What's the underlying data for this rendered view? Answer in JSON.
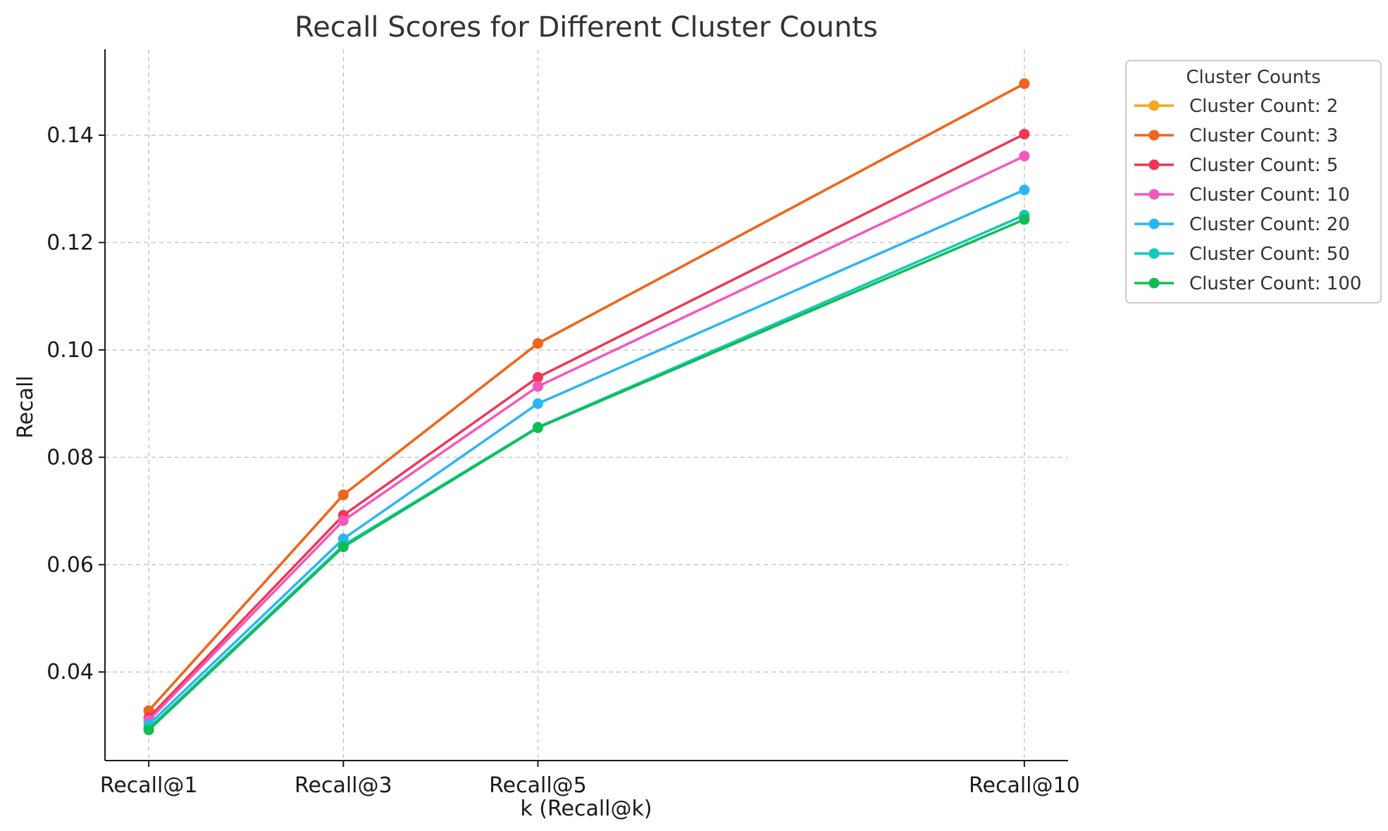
{
  "chart_data": {
    "type": "line",
    "title": "Recall Scores for Different Cluster Counts",
    "xlabel": "k (Recall@k)",
    "ylabel": "Recall",
    "x": [
      1,
      3,
      5,
      10
    ],
    "x_tick_labels": [
      "Recall@1",
      "Recall@3",
      "Recall@5",
      "Recall@10"
    ],
    "xlim": [
      0.55,
      10.45
    ],
    "ylim": [
      0.0235,
      0.156
    ],
    "y_ticks": [
      0.04,
      0.06,
      0.08,
      0.1,
      0.12,
      0.14
    ],
    "y_tick_labels": [
      "0.04",
      "0.06",
      "0.08",
      "0.10",
      "0.12",
      "0.14"
    ],
    "grid": true,
    "legend_title": "Cluster Counts",
    "legend_position": "outside-top-right",
    "series": [
      {
        "name": "Cluster Count: 2",
        "color": "#f5a623",
        "values": [
          0.0328,
          0.073,
          0.1012,
          0.1496
        ]
      },
      {
        "name": "Cluster Count: 3",
        "color": "#f0641e",
        "values": [
          0.0328,
          0.073,
          0.1012,
          0.1496
        ]
      },
      {
        "name": "Cluster Count: 5",
        "color": "#ef3654",
        "values": [
          0.0315,
          0.0692,
          0.0949,
          0.1402
        ]
      },
      {
        "name": "Cluster Count: 10",
        "color": "#f556bd",
        "values": [
          0.031,
          0.0682,
          0.0932,
          0.1361
        ]
      },
      {
        "name": "Cluster Count: 20",
        "color": "#2ab6f4",
        "values": [
          0.0302,
          0.0648,
          0.09,
          0.1298
        ]
      },
      {
        "name": "Cluster Count: 50",
        "color": "#11c9b8",
        "values": [
          0.0295,
          0.0636,
          0.0856,
          0.1251
        ]
      },
      {
        "name": "Cluster Count: 100",
        "color": "#0fbd55",
        "values": [
          0.0292,
          0.0633,
          0.0855,
          0.1243
        ]
      }
    ]
  }
}
